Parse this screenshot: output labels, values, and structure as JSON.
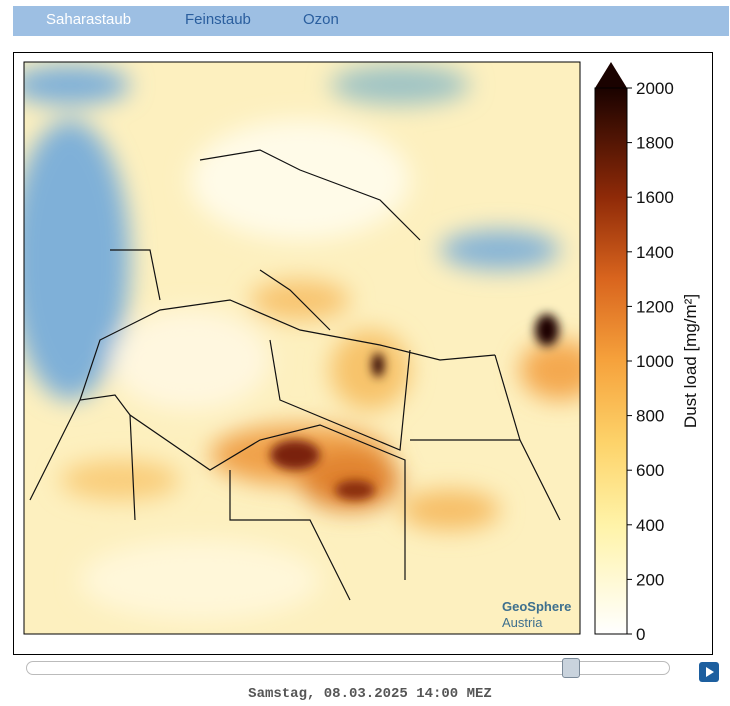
{
  "tabs": [
    "Saharastaub",
    "Feinstaub",
    "Ozon"
  ],
  "colorbar": {
    "label": "Dust load [mg/m²]",
    "lim": [
      0,
      2000
    ],
    "ticks": [
      0,
      200,
      400,
      600,
      800,
      1000,
      1200,
      1400,
      1600,
      1800,
      2000
    ]
  },
  "watermark": {
    "line1": "GeoSphere",
    "line2": "Austria"
  },
  "timestamp": "Samstag, 08.03.2025 14:00 MEZ"
}
